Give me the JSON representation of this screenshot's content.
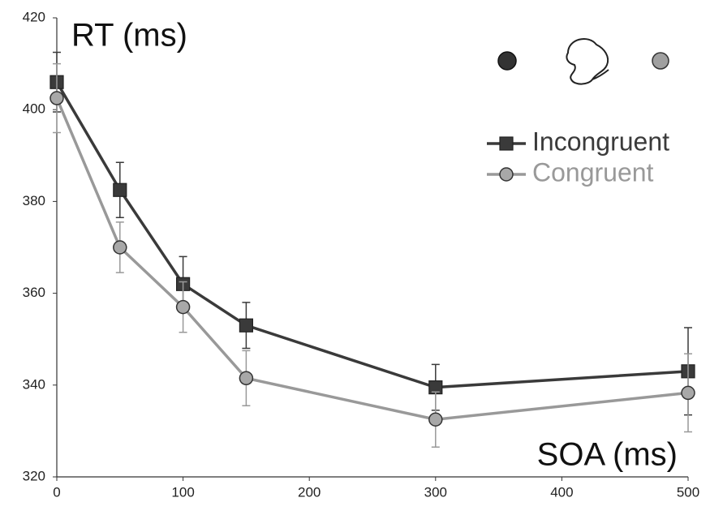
{
  "chart_data": {
    "type": "line",
    "y_label": "RT (ms)",
    "x_label": "SOA (ms)",
    "x": [
      0,
      50,
      100,
      150,
      300,
      500
    ],
    "series": [
      {
        "name": "Incongruent",
        "color": "#3a3a3a",
        "marker": "square",
        "values": [
          406,
          382.5,
          362,
          353,
          339.5,
          343
        ],
        "errors": [
          6.5,
          6,
          6,
          5,
          5,
          9.5
        ]
      },
      {
        "name": "Congruent",
        "color": "#999999",
        "marker": "circle",
        "values": [
          402.5,
          370,
          357,
          341.5,
          332.5,
          338.3
        ],
        "errors": [
          7.5,
          5.5,
          5.5,
          6,
          6,
          8.5
        ]
      }
    ],
    "xlim": [
      0,
      500
    ],
    "xticks": [
      0,
      100,
      200,
      300,
      400,
      500
    ],
    "ylim": [
      320,
      420
    ],
    "yticks": [
      320,
      340,
      360,
      380,
      400,
      420
    ],
    "grid": false
  }
}
